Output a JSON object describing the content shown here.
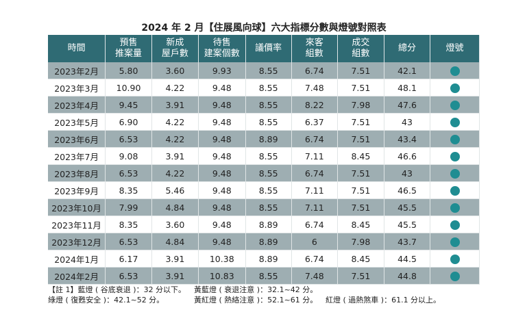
{
  "title": "2024 年 2 月【住展風向球】六大指標分數與燈號對照表",
  "headers": [
    "時間",
    "預售\n推案量",
    "新成\n屋戶數",
    "待售\n建案個數",
    "議價率",
    "來客\n組數",
    "成交\n組數",
    "總分",
    "燈號"
  ],
  "rows": [
    [
      "2023年2月",
      "5.80",
      "3.60",
      "9.93",
      "8.55",
      "6.74",
      "7.51",
      "42.1"
    ],
    [
      "2023年3月",
      "10.90",
      "4.22",
      "9.48",
      "8.55",
      "7.48",
      "7.51",
      "48.1"
    ],
    [
      "2023年4月",
      "9.45",
      "3.91",
      "9.48",
      "8.55",
      "8.22",
      "7.98",
      "47.6"
    ],
    [
      "2023年5月",
      "6.90",
      "4.22",
      "9.48",
      "8.55",
      "6.37",
      "7.51",
      "43"
    ],
    [
      "2023年6月",
      "6.53",
      "4.22",
      "9.48",
      "8.89",
      "6.74",
      "7.51",
      "43.4"
    ],
    [
      "2023年7月",
      "9.08",
      "3.91",
      "9.48",
      "8.55",
      "7.11",
      "8.45",
      "46.6"
    ],
    [
      "2023年8月",
      "6.53",
      "4.22",
      "9.48",
      "8.55",
      "6.74",
      "7.51",
      "43"
    ],
    [
      "2023年9月",
      "8.35",
      "5.46",
      "9.48",
      "8.55",
      "7.11",
      "7.51",
      "46.5"
    ],
    [
      "2023年10月",
      "7.99",
      "4.84",
      "9.48",
      "8.55",
      "7.11",
      "7.51",
      "45.5"
    ],
    [
      "2023年11月",
      "8.35",
      "3.60",
      "9.48",
      "8.89",
      "6.74",
      "8.45",
      "45.5"
    ],
    [
      "2023年12月",
      "6.53",
      "4.84",
      "9.48",
      "8.89",
      "6",
      "7.98",
      "43.7"
    ],
    [
      "2024年1月",
      "6.17",
      "3.91",
      "10.38",
      "8.89",
      "6.74",
      "8.45",
      "44.5"
    ],
    [
      "2024年2月",
      "6.53",
      "3.91",
      "10.83",
      "8.55",
      "7.48",
      "7.51",
      "44.8"
    ]
  ],
  "light_color": "#1f8d92",
  "light_name": "green-light",
  "notes": {
    "blue": "【註 1】藍燈 ( 谷底衰退 )：32 分以下。",
    "yellow_blue": "黃藍燈 ( 衰退注意 )：32.1~42 分。",
    "green": "綠燈 ( 復甦安全 )：42.1~52 分。",
    "yellow_red": "黃紅燈 ( 熱絡注意 )：52.1~61 分。",
    "red": "紅燈 ( 過熱煞車 )：61.1 分以上。"
  }
}
